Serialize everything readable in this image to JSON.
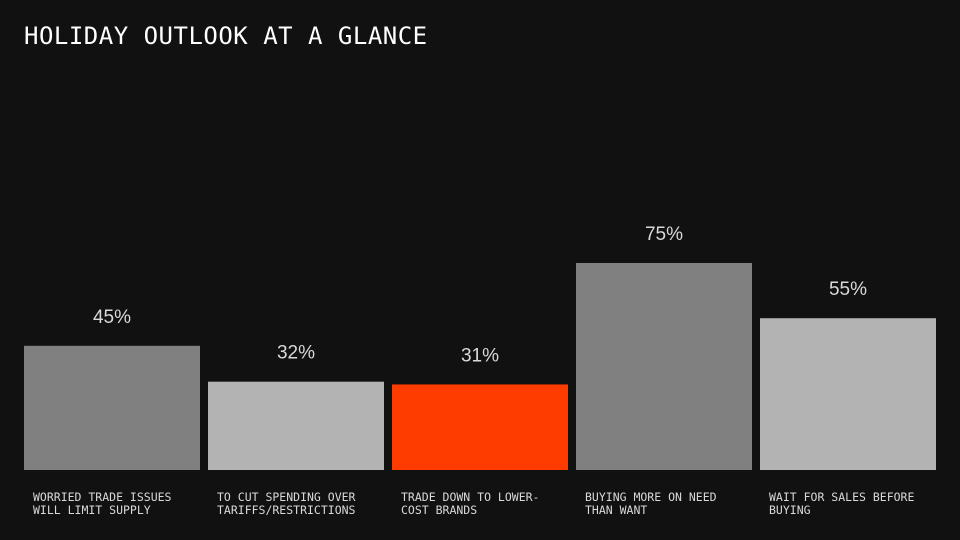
{
  "chart_data": {
    "type": "bar",
    "title": "HOLIDAY OUTLOOK AT A GLANCE",
    "categories": [
      "WORRIED TRADE ISSUES\nWILL LIMIT SUPPLY",
      "TO CUT SPENDING OVER\nTARIFFS/RESTRICTIONS",
      "TRADE DOWN TO LOWER-\nCOST BRANDS",
      "BUYING MORE ON NEED\nTHAN WANT",
      "WAIT FOR SALES BEFORE\nBUYING"
    ],
    "values": [
      45,
      32,
      31,
      75,
      55
    ],
    "data_labels": [
      "45%",
      "32%",
      "31%",
      "75%",
      "55%"
    ],
    "bar_colors": [
      "#808080",
      "#b3b3b3",
      "#ff3c00",
      "#808080",
      "#b3b3b3"
    ],
    "value_label_color": "#d9d9d9",
    "ylim": [
      0,
      100
    ],
    "grid": false,
    "legend": "none"
  }
}
